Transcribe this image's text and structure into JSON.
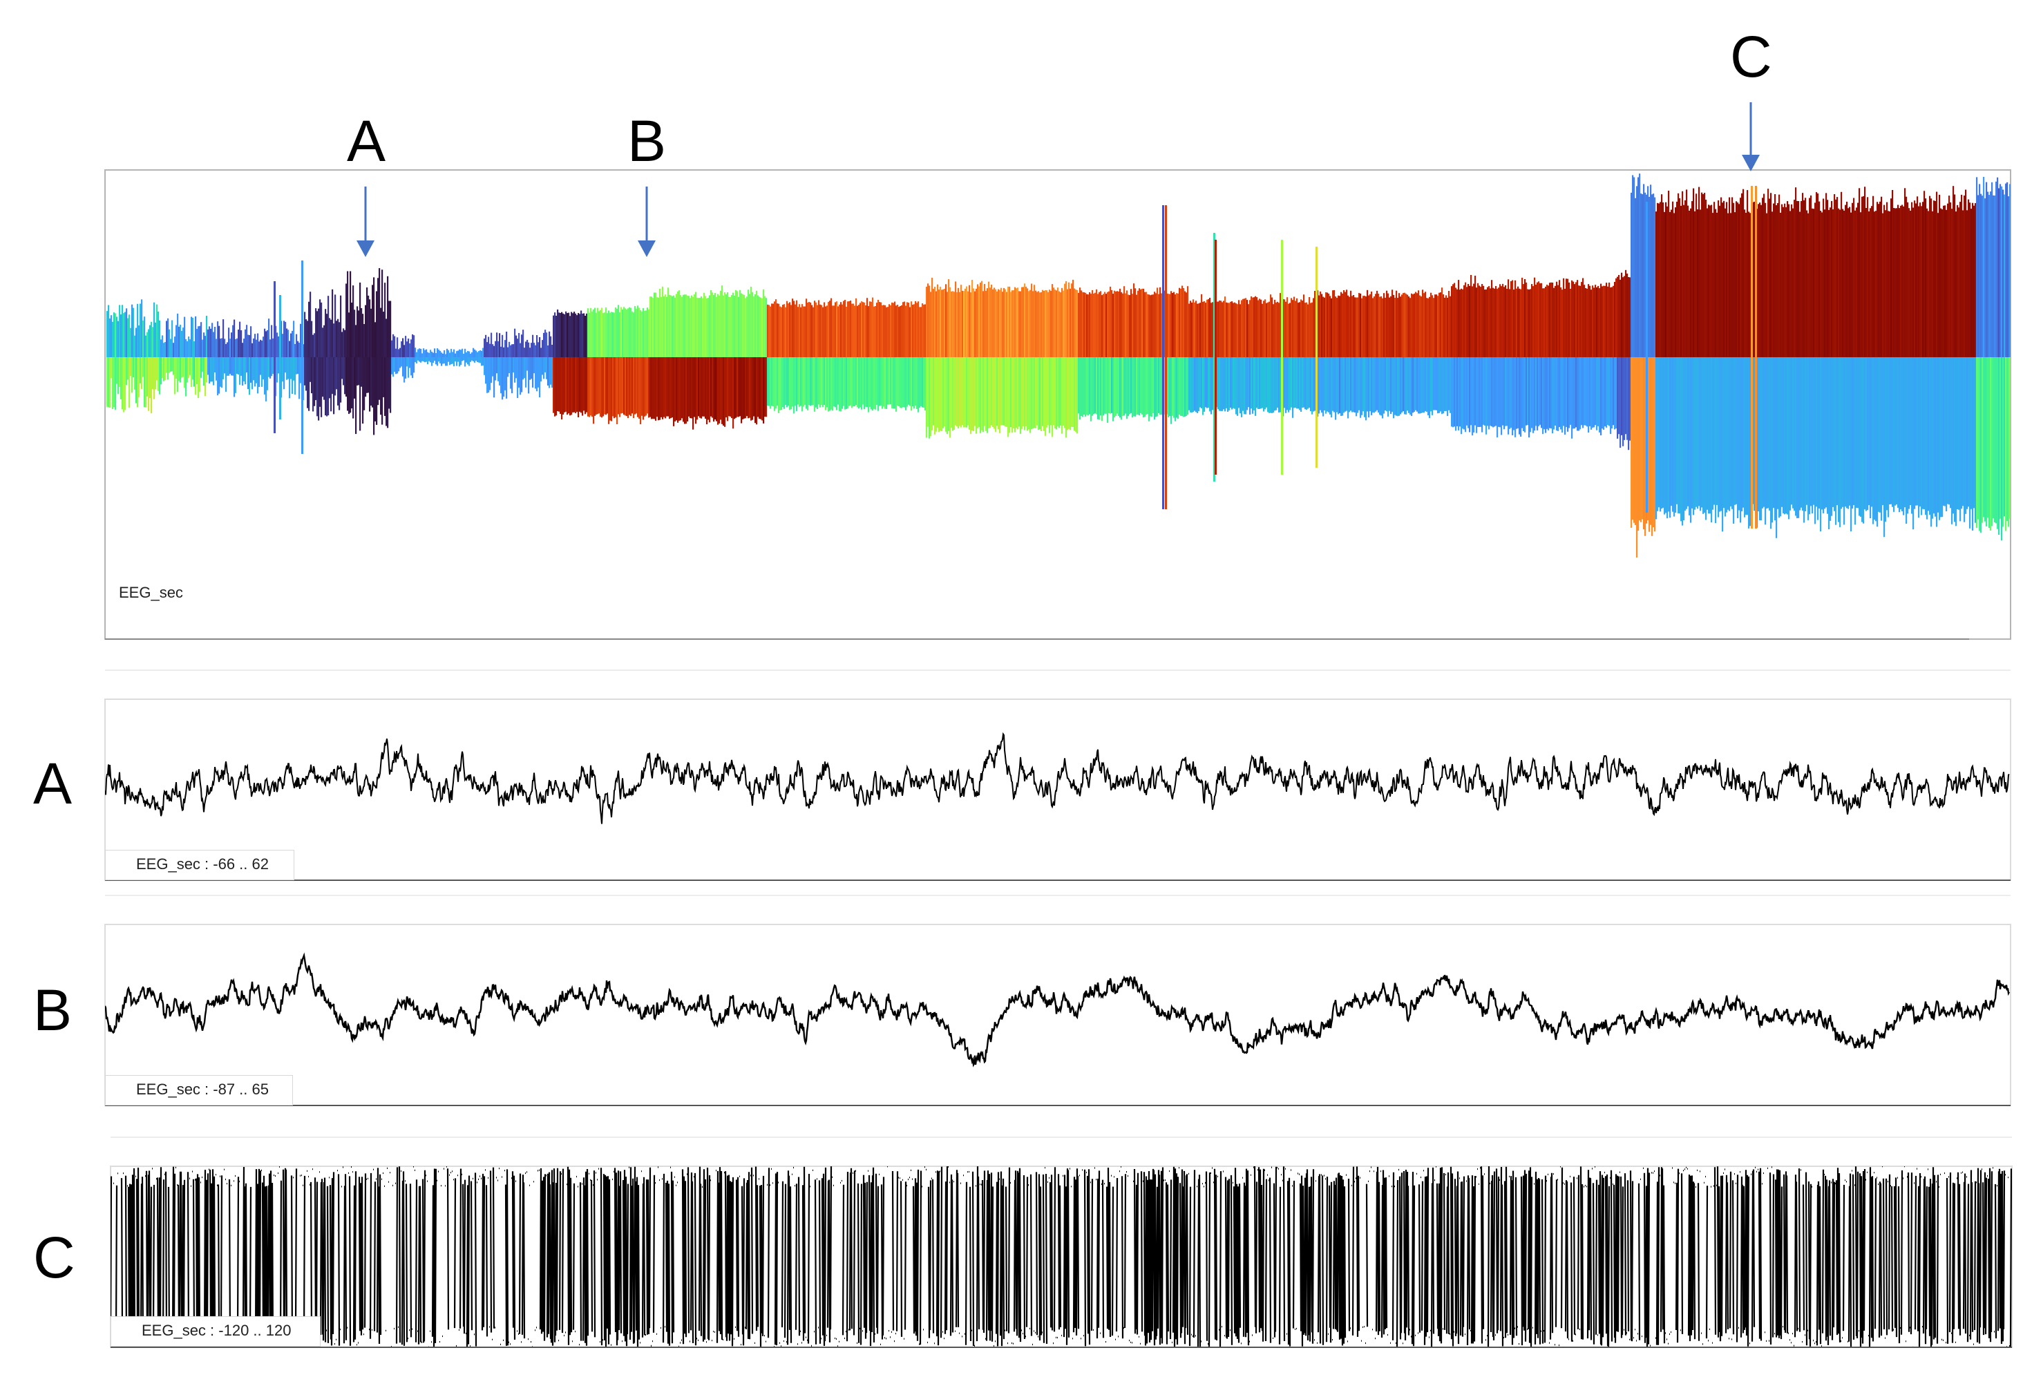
{
  "overview": {
    "channel_label": "EEG_sec",
    "markers": [
      {
        "label": "A"
      },
      {
        "label": "B"
      },
      {
        "label": "C"
      }
    ],
    "colors": {
      "arrow": "#4472c4",
      "trace": "#000000",
      "frame": "#b4b4b4"
    }
  },
  "traces": [
    {
      "side_label": "A",
      "range_label": "EEG_sec : -66 .. 62",
      "range": [
        -66,
        62
      ]
    },
    {
      "side_label": "B",
      "range_label": "EEG_sec : -87 .. 65",
      "range": [
        -87,
        65
      ]
    },
    {
      "side_label": "C",
      "range_label": "EEG_sec : -120 .. 120",
      "range": [
        -120,
        120
      ]
    }
  ]
}
